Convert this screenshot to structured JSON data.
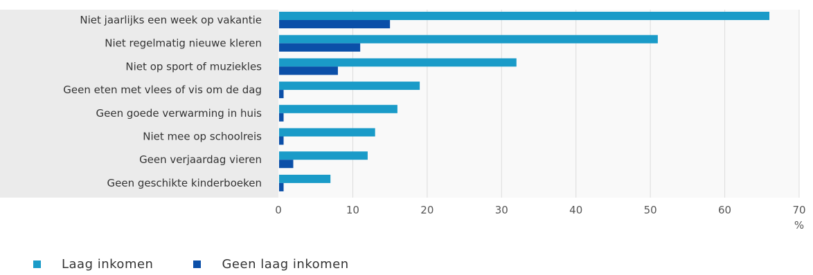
{
  "chart_data": {
    "type": "bar",
    "orientation": "horizontal",
    "categories": [
      "Niet jaarlijks een week op vakantie",
      "Niet regelmatig nieuwe kleren",
      "Niet op sport of muziekles",
      "Geen eten met vlees of vis om de dag",
      "Geen goede verwarming in huis",
      "Niet mee op schoolreis",
      "Geen verjaardag vieren",
      "Geen geschikte kinderboeken"
    ],
    "series": [
      {
        "name": "Laag inkomen",
        "color": "#1A9BC8",
        "values": [
          66,
          51,
          32,
          19,
          16,
          13,
          12,
          7
        ]
      },
      {
        "name": "Geen laag inkomen",
        "color": "#0B4FA8",
        "values": [
          15,
          11,
          8,
          0.7,
          0.7,
          0.7,
          2,
          0.7
        ]
      }
    ],
    "xticks": [
      0,
      10,
      20,
      30,
      40,
      50,
      60,
      70
    ],
    "xlim": [
      0,
      70
    ],
    "xunit": "%",
    "grid": true,
    "legend_position": "bottom-left"
  }
}
